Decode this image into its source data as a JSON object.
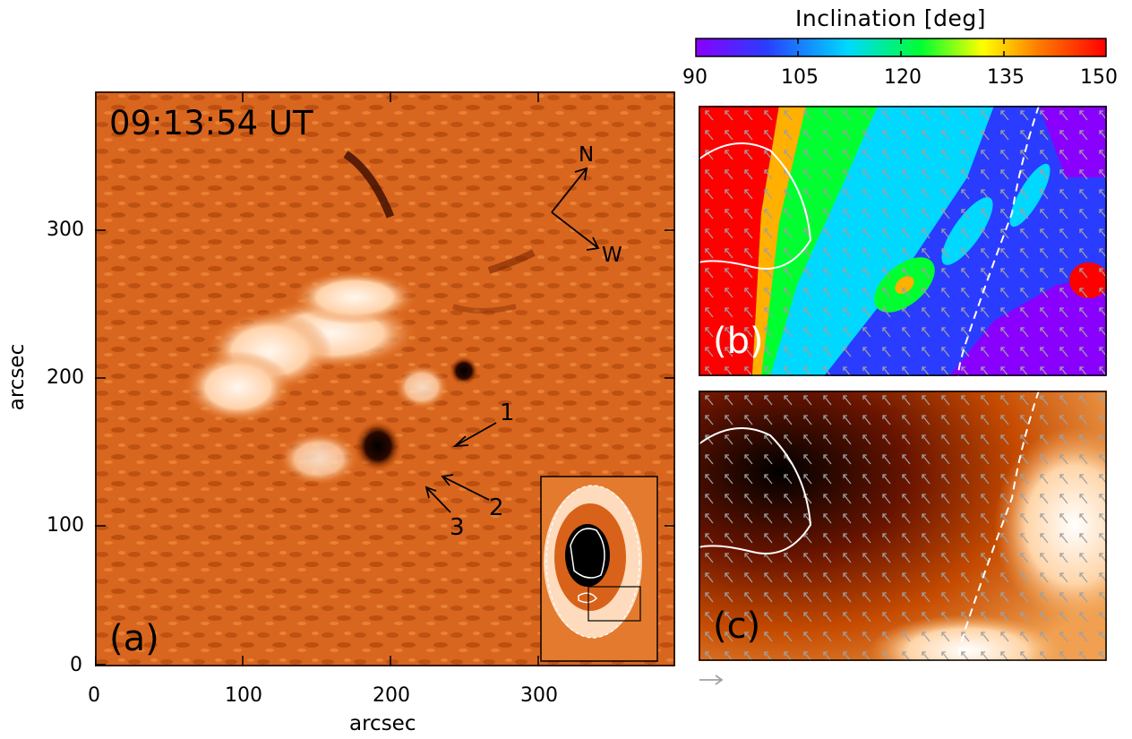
{
  "panel_a": {
    "timestamp": "09:13:54 UT",
    "label": "(a)",
    "xlabel": "arcsec",
    "ylabel": "arcsec",
    "x_ticks": [
      "0",
      "100",
      "200",
      "300"
    ],
    "y_ticks": [
      "0",
      "100",
      "200",
      "300"
    ],
    "compass": {
      "north": "N",
      "west": "W"
    },
    "annotations": [
      "1",
      "2",
      "3"
    ]
  },
  "panel_b": {
    "label": "(b)"
  },
  "panel_c": {
    "label": "(c)"
  },
  "colorbar": {
    "title": "Inclination [deg]",
    "ticks": [
      "90",
      "105",
      "120",
      "135",
      "150"
    ],
    "colors": [
      "#8a00ff",
      "#2a3cff",
      "#00d8ff",
      "#00ff30",
      "#ffff00",
      "#ff8000",
      "#ff0000"
    ]
  }
}
